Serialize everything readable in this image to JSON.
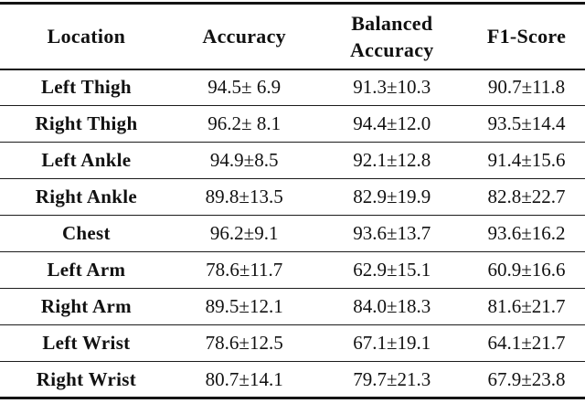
{
  "colors": {
    "background": "#ffffff",
    "text": "#111111",
    "rule": "#141414"
  },
  "table": {
    "header": {
      "location": "Location",
      "accuracy": "Accuracy",
      "balanced_line1": "Balanced",
      "balanced_line2": "Accuracy",
      "f1": "F1-Score"
    },
    "rows": [
      {
        "location": "Left Thigh",
        "accuracy": "94.5± 6.9",
        "balanced": "91.3±10.3",
        "f1": "90.7±11.8"
      },
      {
        "location": "Right Thigh",
        "accuracy": "96.2± 8.1",
        "balanced": "94.4±12.0",
        "f1": "93.5±14.4"
      },
      {
        "location": "Left Ankle",
        "accuracy": "94.9±8.5",
        "balanced": "92.1±12.8",
        "f1": "91.4±15.6"
      },
      {
        "location": "Right Ankle",
        "accuracy": "89.8±13.5",
        "balanced": "82.9±19.9",
        "f1": "82.8±22.7"
      },
      {
        "location": "Chest",
        "accuracy": "96.2±9.1",
        "balanced": "93.6±13.7",
        "f1": "93.6±16.2"
      },
      {
        "location": "Left Arm",
        "accuracy": "78.6±11.7",
        "balanced": "62.9±15.1",
        "f1": "60.9±16.6"
      },
      {
        "location": "Right Arm",
        "accuracy": "89.5±12.1",
        "balanced": "84.0±18.3",
        "f1": "81.6±21.7"
      },
      {
        "location": "Left Wrist",
        "accuracy": "78.6±12.5",
        "balanced": "67.1±19.1",
        "f1": "64.1±21.7"
      },
      {
        "location": "Right Wrist",
        "accuracy": "80.7±14.1",
        "balanced": "79.7±21.3",
        "f1": "67.9±23.8"
      }
    ]
  }
}
